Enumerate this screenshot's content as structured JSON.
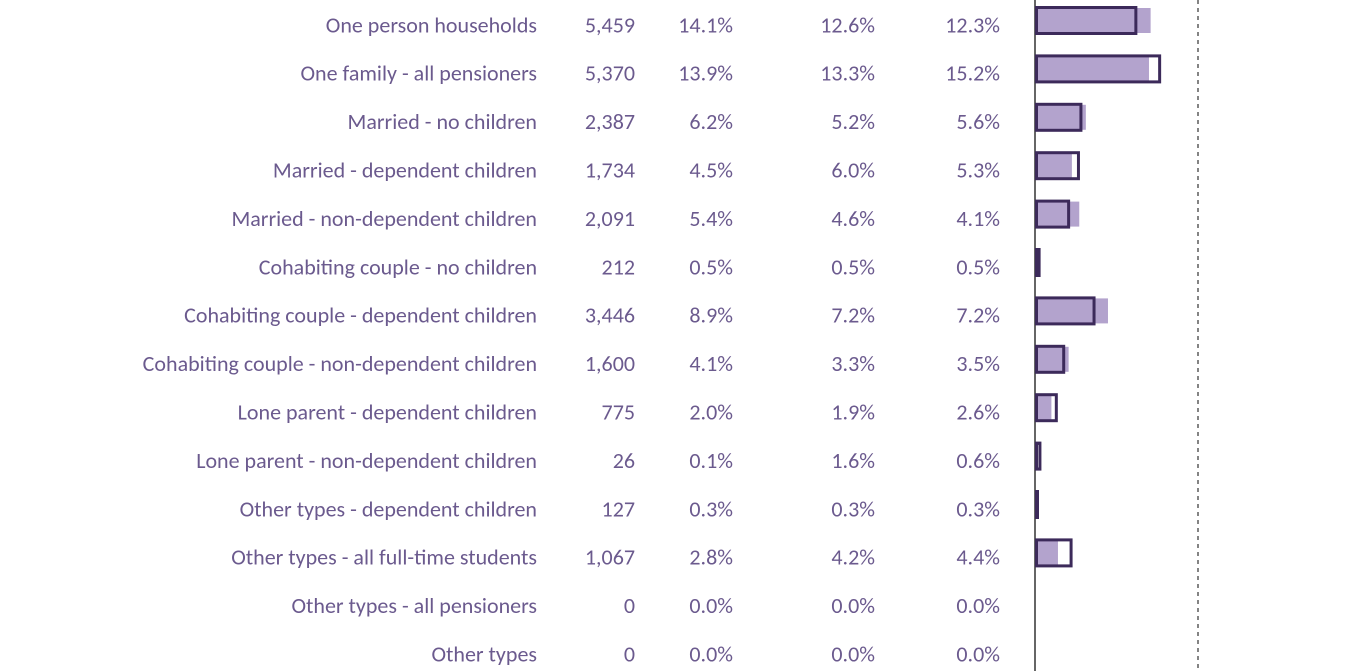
{
  "table": {
    "rows": [
      {
        "label": "One person households",
        "count": "5,459",
        "cells": [
          "14.1%",
          "12.6%",
          "12.3%"
        ]
      },
      {
        "label": "One family - all pensioners",
        "count": "5,370",
        "cells": [
          "13.9%",
          "13.3%",
          "15.2%"
        ]
      },
      {
        "label": "Married - no children",
        "count": "2,387",
        "cells": [
          "6.2%",
          "5.2%",
          "5.6%"
        ]
      },
      {
        "label": "Married - dependent children",
        "count": "1,734",
        "cells": [
          "4.5%",
          "6.0%",
          "5.3%"
        ]
      },
      {
        "label": "Married - non-dependent children",
        "count": "2,091",
        "cells": [
          "5.4%",
          "4.6%",
          "4.1%"
        ]
      },
      {
        "label": "Cohabiting couple - no children",
        "count": "212",
        "cells": [
          "0.5%",
          "0.5%",
          "0.5%"
        ]
      },
      {
        "label": "Cohabiting couple - dependent children",
        "count": "3,446",
        "cells": [
          "8.9%",
          "7.2%",
          "7.2%"
        ]
      },
      {
        "label": "Cohabiting couple - non-dependent children",
        "count": "1,600",
        "cells": [
          "4.1%",
          "3.3%",
          "3.5%"
        ]
      },
      {
        "label": "Lone parent - dependent children",
        "count": "775",
        "cells": [
          "2.0%",
          "1.9%",
          "2.6%"
        ]
      },
      {
        "label": "Lone parent - non-dependent children",
        "count": "26",
        "cells": [
          "0.1%",
          "1.6%",
          "0.6%"
        ]
      },
      {
        "label": "Other types - dependent children",
        "count": "127",
        "cells": [
          "0.3%",
          "0.3%",
          "0.3%"
        ]
      },
      {
        "label": "Other types - all full-time students",
        "count": "1,067",
        "cells": [
          "2.8%",
          "4.2%",
          "4.4%"
        ]
      },
      {
        "label": "Other types - all pensioners",
        "count": "0",
        "cells": [
          "0.0%",
          "0.0%",
          "0.0%"
        ]
      },
      {
        "label": "Other types",
        "count": "0",
        "cells": [
          "0.0%",
          "0.0%",
          "0.0%"
        ]
      }
    ]
  }
}
